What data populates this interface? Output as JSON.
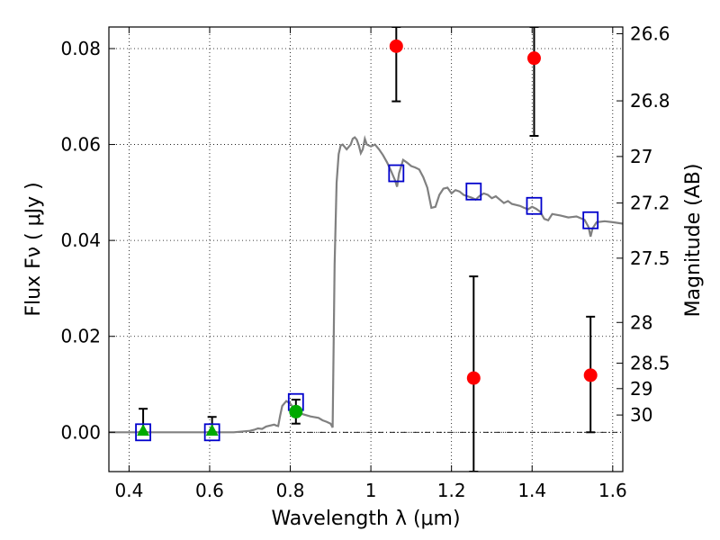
{
  "chart_data": {
    "type": "scatter",
    "xlabel": "Wavelength  λ (μm)",
    "ylabel": "Flux  Fν  ( μJy )",
    "ylabel_right": "Magnitude (AB)",
    "xlim": [
      0.35,
      1.625
    ],
    "ylim": [
      -0.0082,
      0.0845
    ],
    "grid": true,
    "xticks": [
      {
        "value": 0.4,
        "label": "0.4"
      },
      {
        "value": 0.6,
        "label": "0.6"
      },
      {
        "value": 0.8,
        "label": "0.8"
      },
      {
        "value": 1.0,
        "label": "1"
      },
      {
        "value": 1.2,
        "label": "1.2"
      },
      {
        "value": 1.4,
        "label": "1.4"
      },
      {
        "value": 1.6,
        "label": "1.6"
      }
    ],
    "yticks": [
      {
        "value": 0.0,
        "label": "0.00"
      },
      {
        "value": 0.02,
        "label": "0.02"
      },
      {
        "value": 0.04,
        "label": "0.04"
      },
      {
        "value": 0.06,
        "label": "0.06"
      },
      {
        "value": 0.08,
        "label": "0.08"
      }
    ],
    "yticks_right": [
      {
        "label": "26.6",
        "flux": 0.0831
      },
      {
        "label": "26.8",
        "flux": 0.0691
      },
      {
        "label": "27",
        "flux": 0.0575
      },
      {
        "label": "27.2",
        "flux": 0.0478
      },
      {
        "label": "27.5",
        "flux": 0.0363
      },
      {
        "label": "28",
        "flux": 0.0229
      },
      {
        "label": "28.5",
        "flux": 0.0144
      },
      {
        "label": "29",
        "flux": 0.0091
      },
      {
        "label": "30",
        "flux": 0.0036
      }
    ],
    "series": [
      {
        "kind": "line",
        "color": "#808080",
        "x": [
          0.35,
          0.66,
          0.7,
          0.71,
          0.72,
          0.73,
          0.74,
          0.76,
          0.765,
          0.77,
          0.775,
          0.78,
          0.79,
          0.8,
          0.81,
          0.82,
          0.83,
          0.85,
          0.87,
          0.88,
          0.89,
          0.9,
          0.905,
          0.91,
          0.915,
          0.92,
          0.925,
          0.93,
          0.94,
          0.95,
          0.955,
          0.96,
          0.965,
          0.97,
          0.975,
          0.98,
          0.985,
          0.99,
          1.0,
          1.01,
          1.02,
          1.03,
          1.04,
          1.05,
          1.06,
          1.065,
          1.07,
          1.08,
          1.09,
          1.1,
          1.11,
          1.12,
          1.13,
          1.14,
          1.15,
          1.16,
          1.17,
          1.18,
          1.19,
          1.2,
          1.21,
          1.22,
          1.23,
          1.24,
          1.25,
          1.26,
          1.27,
          1.28,
          1.29,
          1.3,
          1.31,
          1.32,
          1.33,
          1.34,
          1.35,
          1.36,
          1.37,
          1.38,
          1.39,
          1.4,
          1.41,
          1.42,
          1.43,
          1.44,
          1.45,
          1.47,
          1.49,
          1.51,
          1.53,
          1.54,
          1.545,
          1.55,
          1.56,
          1.58,
          1.6,
          1.625
        ],
        "y": [
          0.0,
          0.0,
          0.0003,
          0.0005,
          0.0008,
          0.0007,
          0.0012,
          0.0016,
          0.0014,
          0.0013,
          0.0035,
          0.0055,
          0.0065,
          0.006,
          0.0048,
          0.0045,
          0.0038,
          0.0033,
          0.003,
          0.0025,
          0.0022,
          0.0018,
          0.001,
          0.035,
          0.052,
          0.058,
          0.0598,
          0.06,
          0.059,
          0.06,
          0.0612,
          0.0615,
          0.061,
          0.0598,
          0.0582,
          0.059,
          0.0612,
          0.06,
          0.0596,
          0.06,
          0.059,
          0.0578,
          0.0563,
          0.0545,
          0.0525,
          0.0512,
          0.054,
          0.0568,
          0.0562,
          0.0555,
          0.0552,
          0.0548,
          0.0532,
          0.051,
          0.0468,
          0.047,
          0.0495,
          0.0508,
          0.051,
          0.0498,
          0.0505,
          0.0502,
          0.0495,
          0.0492,
          0.0489,
          0.0485,
          0.0493,
          0.0498,
          0.0495,
          0.0488,
          0.0492,
          0.0485,
          0.0478,
          0.0482,
          0.0476,
          0.0474,
          0.0472,
          0.0468,
          0.0465,
          0.047,
          0.0466,
          0.046,
          0.0445,
          0.0442,
          0.0455,
          0.0452,
          0.0448,
          0.045,
          0.0443,
          0.0428,
          0.0408,
          0.0425,
          0.0438,
          0.044,
          0.0438,
          0.0435
        ]
      },
      {
        "kind": "open-square",
        "color": "#0000cc",
        "x": [
          0.435,
          0.606,
          0.814,
          1.063,
          1.255,
          1.405,
          1.545
        ],
        "y": [
          0.0,
          0.0,
          0.0063,
          0.054,
          0.0502,
          0.0472,
          0.0442
        ]
      },
      {
        "kind": "triangle",
        "color": "#00aa00",
        "x": [
          0.435,
          0.606
        ],
        "y": [
          0.0004,
          0.0004
        ]
      },
      {
        "kind": "circle",
        "color": "#00aa00",
        "x": [
          0.814
        ],
        "y": [
          0.0043
        ]
      },
      {
        "kind": "circle",
        "color": "#ff0000",
        "x": [
          1.063,
          1.255,
          1.405,
          1.545
        ],
        "y": [
          0.0805,
          0.0113,
          0.078,
          0.0119
        ]
      }
    ],
    "errorbars": [
      {
        "x": 0.435,
        "low": 0.0,
        "high": 0.0049
      },
      {
        "x": 0.606,
        "low": 0.0,
        "high": 0.0032
      },
      {
        "x": 0.814,
        "low": 0.0018,
        "high": 0.0068
      },
      {
        "x": 1.063,
        "low": 0.069,
        "high": 0.0845
      },
      {
        "x": 1.255,
        "low": -0.0082,
        "high": 0.0325
      },
      {
        "x": 1.405,
        "low": 0.0618,
        "high": 0.0845
      },
      {
        "x": 1.545,
        "low": 0.0,
        "high": 0.0241
      }
    ]
  }
}
